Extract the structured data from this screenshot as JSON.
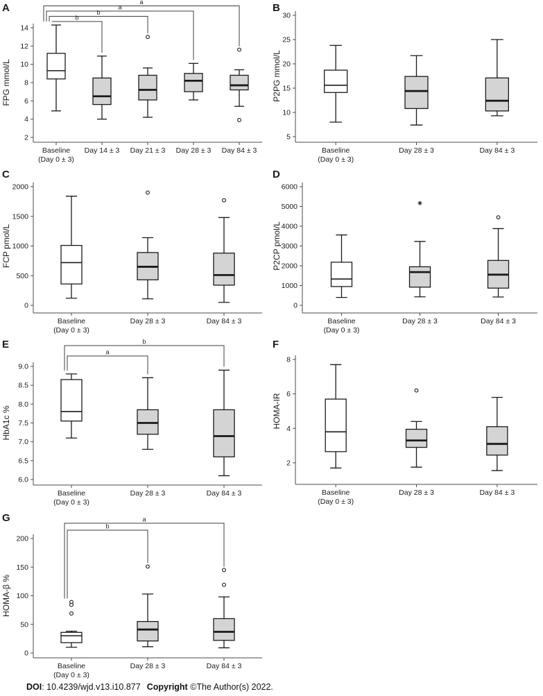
{
  "colors": {
    "background": "#ffffff",
    "box_stroke": "#1a1a1a",
    "box_fill_gray": "#d4d4d4",
    "box_fill_white": "#ffffff",
    "axis": "#4a4a4a",
    "bracket": "#3c3c3c",
    "text": "#1a1a1a"
  },
  "footer": {
    "doi_label": "DOI",
    "doi_text": ": 10.4239/wjd.v13.i10.877",
    "copyright_label": "Copyright",
    "copyright_text": " ©The Author(s) 2022."
  },
  "chart_data": [
    {
      "panel": "A",
      "type": "box",
      "ylabel": "FPG mmol/L",
      "ylim": [
        2,
        14.5
      ],
      "yticks": [
        "2",
        "4",
        "6",
        "8",
        "10",
        "12",
        "14"
      ],
      "categories": [
        [
          "Baseline",
          "(Day 0 ± 3)"
        ],
        [
          "Day 14 ± 3"
        ],
        [
          "Day 21 ± 3"
        ],
        [
          "Day 28 ± 3"
        ],
        [
          "Day 84 ± 3"
        ]
      ],
      "series": [
        {
          "label": "Baseline (Day 0 ± 3)",
          "low": 4.9,
          "q1": 8.4,
          "median": 9.3,
          "q3": 11.2,
          "high": 14.3,
          "outliers": [],
          "extremes": [],
          "fill": "#ffffff"
        },
        {
          "label": "Day 14 ± 3",
          "low": 4.0,
          "q1": 5.6,
          "median": 6.5,
          "q3": 8.5,
          "high": 10.9,
          "outliers": [],
          "extremes": [],
          "fill": "#d4d4d4"
        },
        {
          "label": "Day 21 ± 3",
          "low": 4.2,
          "q1": 6.1,
          "median": 7.2,
          "q3": 8.8,
          "high": 9.6,
          "outliers": [
            13.0
          ],
          "extremes": [],
          "fill": "#d4d4d4"
        },
        {
          "label": "Day 28 ± 3",
          "low": 6.1,
          "q1": 7.0,
          "median": 8.2,
          "q3": 9.0,
          "high": 10.1,
          "outliers": [],
          "extremes": [],
          "fill": "#d4d4d4"
        },
        {
          "label": "Day 84 ± 3",
          "low": 5.4,
          "q1": 7.2,
          "median": 7.7,
          "q3": 8.8,
          "high": 9.4,
          "outliers": [
            11.6,
            3.9
          ],
          "extremes": [],
          "fill": "#d4d4d4"
        }
      ],
      "sig_brackets": [
        {
          "from": 0,
          "to": 1,
          "label": "b"
        },
        {
          "from": 0,
          "to": 2,
          "label": "b"
        },
        {
          "from": 0,
          "to": 3,
          "label": "a"
        },
        {
          "from": 0,
          "to": 4,
          "label": "a"
        }
      ]
    },
    {
      "panel": "B",
      "type": "box",
      "ylabel": "P2PG mmol/L",
      "ylim": [
        5,
        30
      ],
      "yticks": [
        "5",
        "10",
        "15",
        "20",
        "25",
        "30"
      ],
      "categories": [
        [
          "Baseline",
          "(Day 0 ± 3)"
        ],
        [
          "Day 28 ± 3"
        ],
        [
          "Day 84 ± 3"
        ]
      ],
      "series": [
        {
          "label": "Baseline (Day 0 ± 3)",
          "low": 8.0,
          "q1": 14.1,
          "median": 15.6,
          "q3": 18.7,
          "high": 23.8,
          "outliers": [],
          "extremes": [],
          "fill": "#ffffff"
        },
        {
          "label": "Day 28 ± 3",
          "low": 7.4,
          "q1": 10.8,
          "median": 14.4,
          "q3": 17.4,
          "high": 21.7,
          "outliers": [],
          "extremes": [],
          "fill": "#d4d4d4"
        },
        {
          "label": "Day 84 ± 3",
          "low": 9.3,
          "q1": 10.3,
          "median": 12.4,
          "q3": 17.1,
          "high": 25.0,
          "outliers": [],
          "extremes": [],
          "fill": "#d4d4d4"
        }
      ],
      "sig_brackets": []
    },
    {
      "panel": "C",
      "type": "box",
      "ylabel": "FCP pmol/L",
      "ylim": [
        0,
        2000
      ],
      "yticks": [
        "0",
        "500",
        "1000",
        "1500",
        "2000"
      ],
      "categories": [
        [
          "Baseline",
          "(Day 0 ± 3)"
        ],
        [
          "Day 28 ± 3"
        ],
        [
          "Day 84 ± 3"
        ]
      ],
      "series": [
        {
          "label": "Baseline (Day 0 ± 3)",
          "low": 120,
          "q1": 360,
          "median": 720,
          "q3": 1010,
          "high": 1840,
          "outliers": [],
          "extremes": [],
          "fill": "#ffffff"
        },
        {
          "label": "Day 28 ± 3",
          "low": 110,
          "q1": 430,
          "median": 650,
          "q3": 890,
          "high": 1140,
          "outliers": [
            1900
          ],
          "extremes": [],
          "fill": "#d4d4d4"
        },
        {
          "label": "Day 84 ± 3",
          "low": 50,
          "q1": 340,
          "median": 510,
          "q3": 880,
          "high": 1480,
          "outliers": [
            1770
          ],
          "extremes": [],
          "fill": "#d4d4d4"
        }
      ],
      "sig_brackets": []
    },
    {
      "panel": "D",
      "type": "box",
      "ylabel": "P2CP pmol/L",
      "ylim": [
        0,
        6000
      ],
      "yticks": [
        "0",
        "1000",
        "2000",
        "3000",
        "4000",
        "5000",
        "6000"
      ],
      "categories": [
        [
          "Baseline",
          "(Day 0 ± 3)"
        ],
        [
          "Day 28 ± 3"
        ],
        [
          "Day 84 ± 3"
        ]
      ],
      "series": [
        {
          "label": "Baseline (Day 0 ± 3)",
          "low": 400,
          "q1": 950,
          "median": 1330,
          "q3": 2180,
          "high": 3560,
          "outliers": [],
          "extremes": [],
          "fill": "#ffffff"
        },
        {
          "label": "Day 28 ± 3",
          "low": 430,
          "q1": 920,
          "median": 1680,
          "q3": 1950,
          "high": 3230,
          "outliers": [],
          "extremes": [
            5170
          ],
          "fill": "#d4d4d4"
        },
        {
          "label": "Day 84 ± 3",
          "low": 420,
          "q1": 870,
          "median": 1550,
          "q3": 2270,
          "high": 3880,
          "outliers": [
            4450
          ],
          "extremes": [],
          "fill": "#d4d4d4"
        }
      ],
      "sig_brackets": []
    },
    {
      "panel": "E",
      "type": "box",
      "ylabel": "HbA1c %",
      "ylim": [
        6.0,
        9.0
      ],
      "yticks": [
        "6.0",
        "6.5",
        "7.0",
        "7.5",
        "8.0",
        "8.5",
        "9.0"
      ],
      "categories": [
        [
          "Baseline",
          "(Day 0 ± 3)"
        ],
        [
          "Day 28 ± 3"
        ],
        [
          "Day 84 ± 3"
        ]
      ],
      "series": [
        {
          "label": "Baseline (Day 0 ± 3)",
          "low": 7.1,
          "q1": 7.55,
          "median": 7.8,
          "q3": 8.65,
          "high": 8.8,
          "outliers": [],
          "extremes": [],
          "fill": "#ffffff"
        },
        {
          "label": "Day 28 ± 3",
          "low": 6.8,
          "q1": 7.2,
          "median": 7.5,
          "q3": 7.85,
          "high": 8.7,
          "outliers": [],
          "extremes": [],
          "fill": "#d4d4d4"
        },
        {
          "label": "Day 84 ± 3",
          "low": 6.1,
          "q1": 6.6,
          "median": 7.15,
          "q3": 7.85,
          "high": 8.9,
          "outliers": [],
          "extremes": [],
          "fill": "#d4d4d4"
        }
      ],
      "sig_brackets": [
        {
          "from": 0,
          "to": 1,
          "label": "a"
        },
        {
          "from": 0,
          "to": 2,
          "label": "b"
        }
      ]
    },
    {
      "panel": "F",
      "type": "box",
      "ylabel": "HOMA-IR",
      "ylim": [
        1,
        8
      ],
      "yticks": [
        "2",
        "4",
        "6",
        "8"
      ],
      "categories": [
        [
          "Baseline",
          "(Day 0 ± 3)"
        ],
        [
          "Day 28 ± 3"
        ],
        [
          "Day 84 ± 3"
        ]
      ],
      "series": [
        {
          "label": "Baseline (Day 0 ± 3)",
          "low": 1.7,
          "q1": 2.65,
          "median": 3.8,
          "q3": 5.7,
          "high": 7.7,
          "outliers": [],
          "extremes": [],
          "fill": "#ffffff"
        },
        {
          "label": "Day 28 ± 3",
          "low": 1.75,
          "q1": 2.9,
          "median": 3.3,
          "q3": 3.95,
          "high": 4.4,
          "outliers": [
            6.2
          ],
          "extremes": [],
          "fill": "#d4d4d4"
        },
        {
          "label": "Day 84 ± 3",
          "low": 1.55,
          "q1": 2.45,
          "median": 3.1,
          "q3": 4.1,
          "high": 5.8,
          "outliers": [],
          "extremes": [],
          "fill": "#d4d4d4"
        }
      ],
      "sig_brackets": []
    },
    {
      "panel": "G",
      "type": "box",
      "ylabel": "HOMA-β %",
      "ylim": [
        0,
        200
      ],
      "yticks": [
        "0",
        "50",
        "100",
        "150",
        "200"
      ],
      "categories": [
        [
          "Baseline",
          "(Day 0 ± 3)"
        ],
        [
          "Day 28 ± 3"
        ],
        [
          "Day 84 ± 3"
        ]
      ],
      "series": [
        {
          "label": "Baseline (Day 0 ± 3)",
          "low": 10,
          "q1": 18,
          "median": 30,
          "q3": 36,
          "high": 38,
          "outliers": [
            89,
            84,
            69
          ],
          "extremes": [],
          "fill": "#ffffff"
        },
        {
          "label": "Day 28 ± 3",
          "low": 11,
          "q1": 21,
          "median": 41,
          "q3": 55,
          "high": 103,
          "outliers": [
            151
          ],
          "extremes": [],
          "fill": "#d4d4d4"
        },
        {
          "label": "Day 84 ± 3",
          "low": 9,
          "q1": 22,
          "median": 37,
          "q3": 60,
          "high": 98,
          "outliers": [
            145,
            119
          ],
          "extremes": [],
          "fill": "#d4d4d4"
        }
      ],
      "sig_brackets": [
        {
          "from": 0,
          "to": 1,
          "label": "b"
        },
        {
          "from": 0,
          "to": 2,
          "label": "a"
        }
      ]
    }
  ]
}
